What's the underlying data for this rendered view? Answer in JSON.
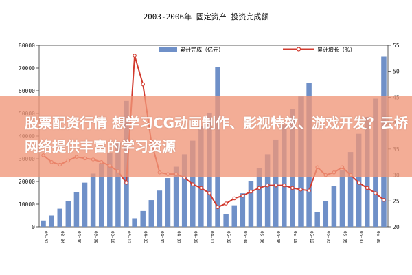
{
  "banner": {
    "text": "股票配资行情 想学习CG动画制作、影视特效、游戏开发？云桥网络提供丰富的学习资源"
  },
  "chart_data": {
    "type": "bar+line",
    "title": "2003-2006年 固定资产 投资完成额",
    "xlabel": "",
    "ylabel": "",
    "legend_placement": "top",
    "y_left": {
      "lim": [
        0,
        80000
      ],
      "ticks": [
        0,
        10000,
        20000,
        30000,
        40000,
        50000,
        60000,
        70000,
        80000
      ]
    },
    "y_right": {
      "lim": [
        20,
        55
      ],
      "ticks": [
        20,
        25,
        30,
        35,
        40,
        45,
        50,
        55
      ]
    },
    "categories": [
      "03-02",
      "03-03",
      "03-04",
      "03-05",
      "03-06",
      "03-07",
      "03-08",
      "03-09",
      "03-10",
      "03-11",
      "03-12",
      "04-02",
      "04-03",
      "04-04",
      "04-05",
      "04-06",
      "04-07",
      "04-08",
      "04-09",
      "04-10",
      "04-11",
      "04-12",
      "05-02",
      "05-03",
      "05-04",
      "05-05",
      "05-06",
      "05-07",
      "05-08",
      "05-09",
      "05-10",
      "05-11",
      "05-12",
      "06-02",
      "06-03",
      "06-04",
      "06-05",
      "06-06",
      "06-07",
      "06-08",
      "06-09",
      "06-10"
    ],
    "x_tick_labels": [
      "03-02",
      "03-04",
      "03-06",
      "03-08",
      "03-10",
      "03-12",
      "04-03",
      "04-05",
      "04-07",
      "04-09",
      "04-11",
      "05-02",
      "05-04",
      "05-06",
      "05-08",
      "05-10",
      "05-12",
      "06-03",
      "06-05",
      "06-07",
      "06-09"
    ],
    "series": [
      {
        "name": "累计完成（亿元）",
        "kind": "bar",
        "color": "#6f90c8",
        "values": [
          2800,
          5000,
          8000,
          11500,
          15200,
          19500,
          23500,
          28000,
          32500,
          37000,
          55500,
          3800,
          7000,
          11800,
          16000,
          21500,
          26500,
          32000,
          38000,
          44500,
          50000,
          70500,
          5500,
          9500,
          14800,
          20000,
          26000,
          32000,
          38500,
          45000,
          52000,
          57500,
          63500,
          6500,
          11500,
          18000,
          25000,
          33000,
          41000,
          48500,
          56500,
          75000
        ]
      },
      {
        "name": "累计增长（%）",
        "kind": "line",
        "color": "#d23b2f",
        "values": [
          33.8,
          32.5,
          32.0,
          32.8,
          33.5,
          33.2,
          33.0,
          32.5,
          31.8,
          30.7,
          28.5,
          53.0,
          47.5,
          36.5,
          30.5,
          30.2,
          30.2,
          29.5,
          28.2,
          27.5,
          26.5,
          23.8,
          24.5,
          25.5,
          26.0,
          26.8,
          27.5,
          28.0,
          28.0,
          28.0,
          27.5,
          27.2,
          27.0,
          31.5,
          30.0,
          30.5,
          31.5,
          30.0,
          28.5,
          27.5,
          26.5,
          25.2
        ]
      }
    ]
  }
}
